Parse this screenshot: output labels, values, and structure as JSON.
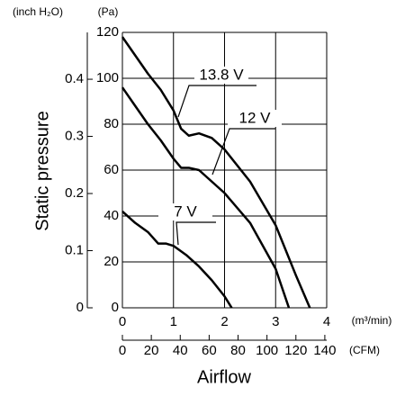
{
  "chart_data": {
    "type": "line",
    "y_title": "Static pressure",
    "x_title": "Airflow",
    "y_unit_label": "(Pa)",
    "y2_unit_label": "(inch H₂O)",
    "x_unit_label": "(m³/min)",
    "x2_unit_label": "(CFM)",
    "xlim": [
      0,
      4
    ],
    "xticks": [
      0,
      1,
      2,
      3,
      4
    ],
    "ylim": [
      0,
      120
    ],
    "yticks": [
      0,
      20,
      40,
      60,
      80,
      100,
      120
    ],
    "y2lim": [
      0,
      0.482
    ],
    "y2ticks": [
      0,
      0.1,
      0.2,
      0.3,
      0.4
    ],
    "x2lim": [
      0,
      141.3
    ],
    "x2ticks": [
      0,
      20,
      40,
      60,
      80,
      100,
      120,
      140
    ],
    "grid": true,
    "series": [
      {
        "name": "13.8 V",
        "color": "#000000",
        "x": [
          0,
          0.25,
          0.5,
          0.75,
          1.0,
          1.15,
          1.3,
          1.5,
          1.75,
          2.0,
          2.5,
          3.0,
          3.4,
          3.67
        ],
        "values": [
          118,
          110,
          102,
          95,
          86,
          78,
          75,
          76,
          74,
          69,
          55,
          36,
          14,
          0
        ]
      },
      {
        "name": "12 V",
        "color": "#000000",
        "x": [
          0,
          0.25,
          0.5,
          0.75,
          1.0,
          1.15,
          1.3,
          1.5,
          1.75,
          2.0,
          2.5,
          3.0,
          3.26
        ],
        "values": [
          96,
          88,
          80,
          73,
          65,
          61,
          61,
          60,
          55,
          50,
          37,
          17,
          0
        ]
      },
      {
        "name": "7 V",
        "color": "#000000",
        "x": [
          0,
          0.25,
          0.5,
          0.7,
          0.85,
          1.0,
          1.25,
          1.5,
          1.75,
          2.0,
          2.14
        ],
        "values": [
          42,
          37,
          33,
          28,
          28,
          27,
          23,
          18,
          12,
          5,
          0
        ]
      }
    ]
  }
}
